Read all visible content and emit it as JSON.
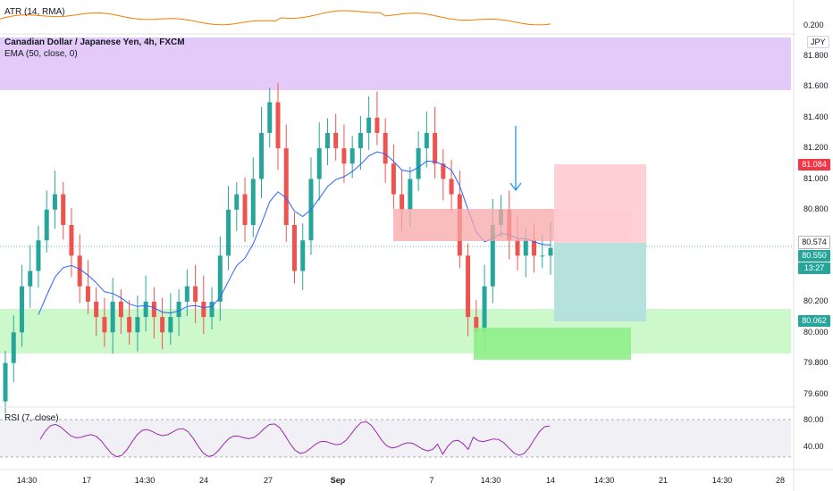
{
  "atr": {
    "label": "ATR (14, RMA)",
    "value": "0.200"
  },
  "header": {
    "symbol_title": "Canadian Dollar / Japanese Yen, 4h, FXCM",
    "indicator": "EMA (50, close, 0)",
    "currency": "JPY"
  },
  "rsi": {
    "label": "RSI (7, close)",
    "ticks": [
      "80.00",
      "40.00"
    ]
  },
  "price_axis": {
    "ticks": [
      "81.800",
      "81.600",
      "81.400",
      "81.200",
      "81.000",
      "80.800",
      "80.200",
      "80.000",
      "79.800",
      "79.600"
    ],
    "tags": {
      "stop": "81.084",
      "current": "80.574",
      "last": "80.550",
      "countdown": "13:27",
      "target": "80.062"
    }
  },
  "time_axis": [
    "14:30",
    "17",
    "14:30",
    "24",
    "27",
    "Sep",
    "7",
    "14:30",
    "14",
    "14:30",
    "21",
    "14:30",
    "28"
  ],
  "colors": {
    "up": "#26a69a",
    "down": "#ef5350",
    "ema": "#2962ff",
    "atr": "#f57c00",
    "rsi": "#9c27b0",
    "purple_zone": "#e1c4f7",
    "green_zone": "#c8f7c5",
    "red_zone": "#f7a7a7",
    "long_profit": "#b2dfdb",
    "short_stop": "#ffcdd2"
  },
  "chart_data": {
    "type": "candlestick",
    "timeframe": "4h",
    "ylim": [
      79.5,
      81.9
    ],
    "zones": [
      {
        "name": "resistance",
        "low": 81.58,
        "high": 81.92
      },
      {
        "name": "support",
        "low": 79.86,
        "high": 80.14
      }
    ],
    "candles_approx_close": [
      79.8,
      80.0,
      80.3,
      80.4,
      80.6,
      80.8,
      80.9,
      80.7,
      80.5,
      80.3,
      80.2,
      80.1,
      80.0,
      80.2,
      80.1,
      80.0,
      80.1,
      80.2,
      80.1,
      80.0,
      80.1,
      80.2,
      80.3,
      80.2,
      80.1,
      80.2,
      80.5,
      80.8,
      80.9,
      80.7,
      81.0,
      81.3,
      81.5,
      81.2,
      80.7,
      80.4,
      80.6,
      81.0,
      81.2,
      81.3,
      81.2,
      81.1,
      81.2,
      81.3,
      81.4,
      81.3,
      81.1,
      80.9,
      80.8,
      81.0,
      81.2,
      81.3,
      81.1,
      81.0,
      80.9,
      80.5,
      80.1,
      80.0,
      80.3,
      80.7,
      80.8,
      80.6,
      80.5,
      80.6,
      80.5,
      80.5,
      80.55
    ]
  }
}
